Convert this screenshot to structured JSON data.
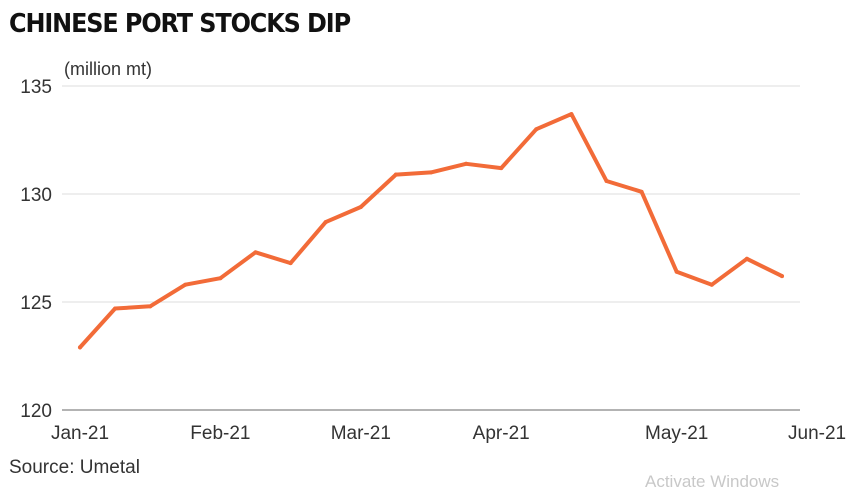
{
  "title": "CHINESE PORT STOCKS DIP",
  "source": "Source: Umetal",
  "watermark": "Activate Windows",
  "chart_data": {
    "type": "line",
    "title": "CHINESE PORT STOCKS DIP",
    "unit": "(million mt)",
    "xlabel": "",
    "ylabel": "",
    "ylim": [
      120,
      135
    ],
    "yticks": [
      120,
      125,
      130,
      135
    ],
    "xtick_labels": [
      "Jan-21",
      "Feb-21",
      "Mar-21",
      "Apr-21",
      "May-21",
      "Jun-21"
    ],
    "xtick_index": [
      0,
      4,
      8,
      12,
      17,
      21
    ],
    "grid": true,
    "color": "#f26b38",
    "series": [
      {
        "values": [
          122.9,
          124.7,
          124.8,
          125.8,
          126.1,
          127.3,
          126.8,
          128.7,
          129.4,
          130.9,
          131.0,
          131.4,
          131.2,
          133.0,
          133.7,
          130.6,
          130.1,
          126.4,
          125.8,
          127.0,
          126.2
        ]
      }
    ]
  }
}
